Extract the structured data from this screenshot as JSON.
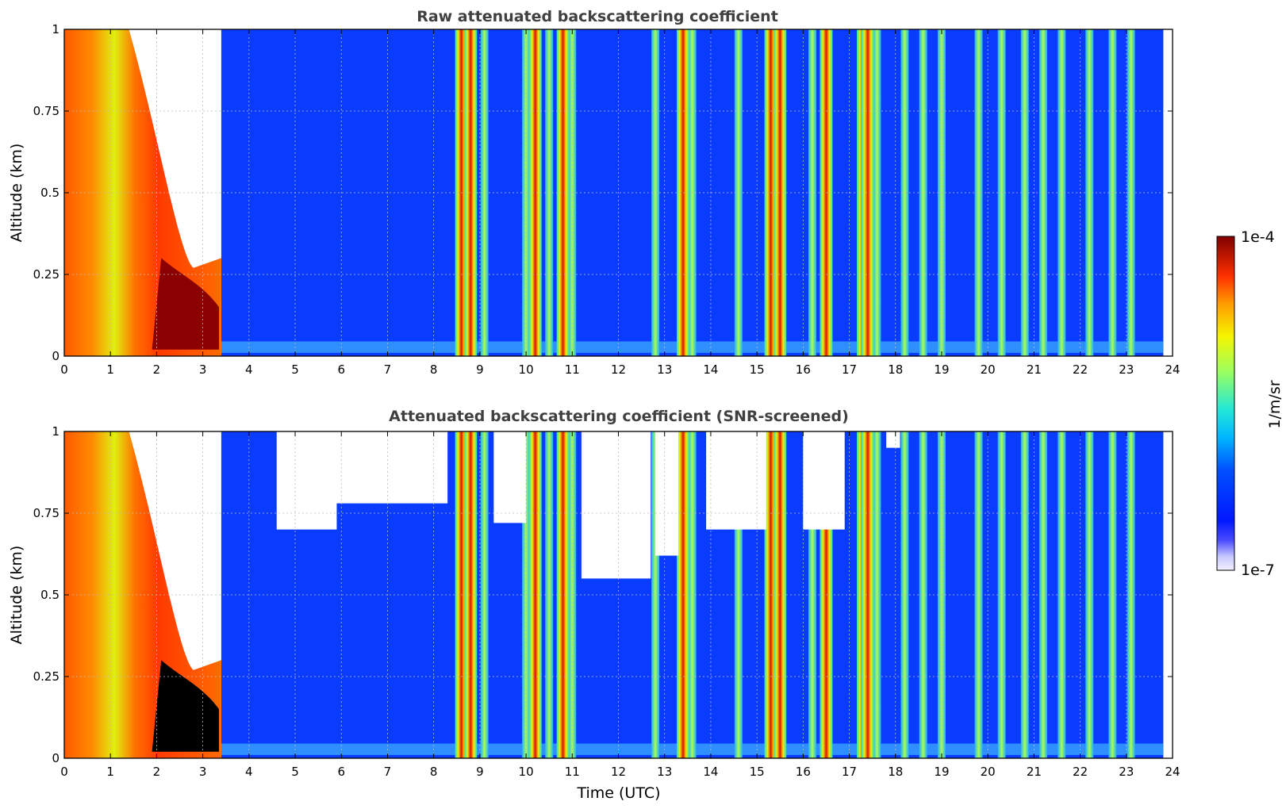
{
  "chart_data": [
    {
      "type": "heatmap",
      "title": "Raw attenuated backscattering coefficient",
      "xlabel": "",
      "ylabel": "Altitude (km)",
      "xlim": [
        0,
        24
      ],
      "ylim": [
        0,
        1
      ],
      "xticks": [
        "0",
        "1",
        "2",
        "3",
        "4",
        "5",
        "6",
        "7",
        "8",
        "9",
        "10",
        "11",
        "12",
        "13",
        "14",
        "15",
        "16",
        "17",
        "18",
        "19",
        "20",
        "21",
        "22",
        "23",
        "24"
      ],
      "yticks": [
        "0",
        "0.25",
        "0.5",
        "0.75",
        "1"
      ],
      "ytick_values": [
        0,
        0.25,
        0.5,
        0.75,
        1
      ],
      "grid": true,
      "data_end_hour": 23.8,
      "fog_layer": {
        "start_hour": 0,
        "end_hour": 3.4,
        "top_km_at_start": 1.0,
        "top_km_at_end": 0.27
      },
      "intense_columns_hours": [
        8.6,
        8.8,
        10.2,
        10.8,
        13.4,
        15.3,
        15.5,
        16.5,
        17.3,
        17.4
      ],
      "moderate_columns_hours": [
        9.1,
        10.0,
        10.5,
        11.0,
        12.8,
        13.6,
        14.6,
        16.2,
        17.6,
        18.2,
        18.6,
        19.0,
        19.8,
        20.3,
        20.8,
        21.2,
        21.6,
        22.2,
        22.7,
        23.1
      ]
    },
    {
      "type": "heatmap",
      "title": "Attenuated backscattering coefficient (SNR-screened)",
      "xlabel": "Time (UTC)",
      "ylabel": "Altitude (km)",
      "xlim": [
        0,
        24
      ],
      "ylim": [
        0,
        1
      ],
      "xticks": [
        "0",
        "1",
        "2",
        "3",
        "4",
        "5",
        "6",
        "7",
        "8",
        "9",
        "10",
        "11",
        "12",
        "13",
        "14",
        "15",
        "16",
        "17",
        "18",
        "19",
        "20",
        "21",
        "22",
        "23",
        "24"
      ],
      "yticks": [
        "0",
        "0.25",
        "0.5",
        "0.75",
        "1"
      ],
      "ytick_values": [
        0,
        0.25,
        0.5,
        0.75,
        1
      ],
      "grid": true,
      "data_end_hour": 23.8,
      "fog_layer": {
        "start_hour": 0,
        "end_hour": 3.4,
        "top_km_at_start": 1.0,
        "top_km_at_end": 0.27
      },
      "intense_columns_hours": [
        8.6,
        8.8,
        10.2,
        10.8,
        13.4,
        15.3,
        15.5,
        16.5,
        17.3,
        17.4
      ],
      "moderate_columns_hours": [
        9.1,
        10.0,
        10.5,
        11.0,
        12.8,
        13.6,
        14.6,
        16.2,
        17.6,
        18.2,
        18.6,
        19.0,
        19.8,
        20.3,
        20.8,
        21.2,
        21.6,
        22.2,
        22.7,
        23.1
      ]
    }
  ],
  "colorbar": {
    "label": "1/m/sr",
    "max_label": "1e-4",
    "min_label": "1e-7",
    "scale": "log",
    "colormap": "jet"
  },
  "colors": {
    "background_blue": "#0a3cff",
    "grid": "#bbbbbb",
    "title": "#404040"
  }
}
